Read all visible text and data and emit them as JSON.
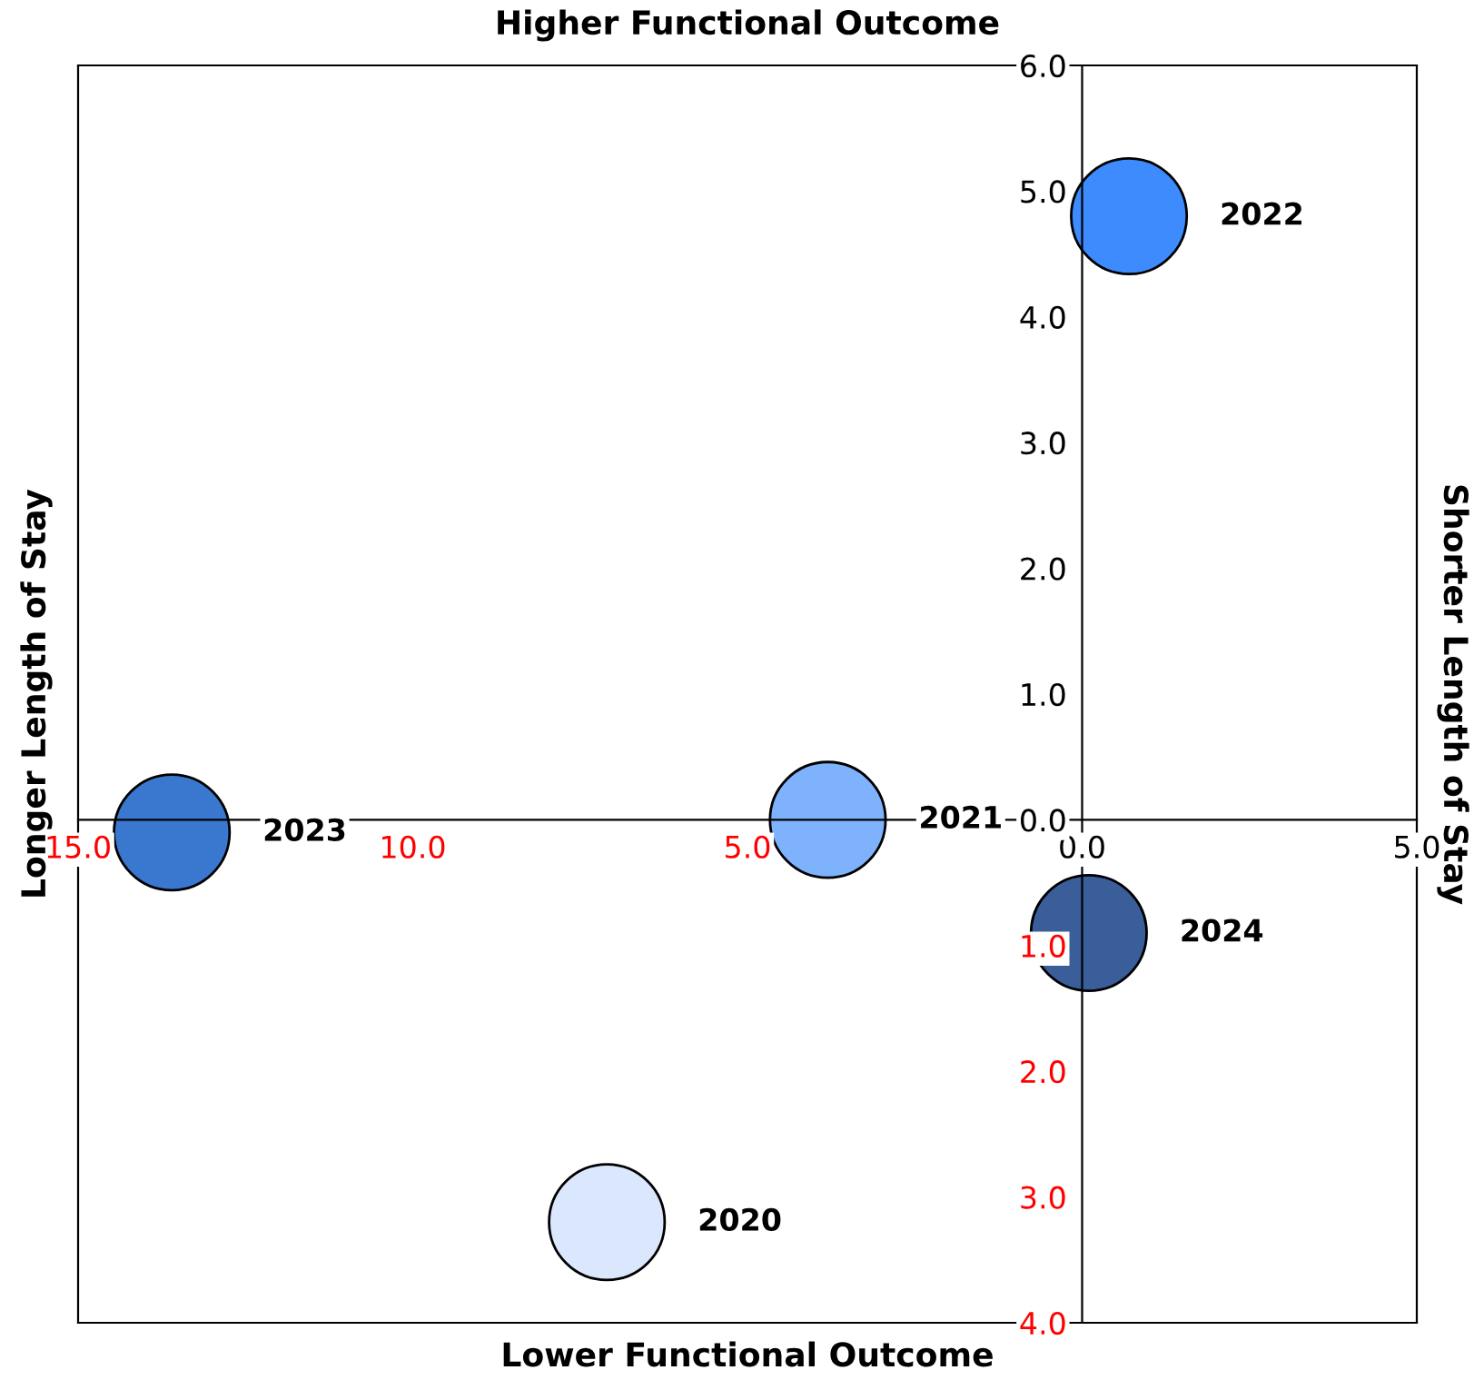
{
  "chart_data": {
    "type": "scatter",
    "xlabel": "Lower Functional Outcome",
    "x2label": "Higher Functional Outcome",
    "ylabel": "Longer Length of Stay",
    "y2label": "Shorter Length of Stay",
    "xlim": [
      -15,
      5
    ],
    "ylim": [
      -4,
      6
    ],
    "marker": "circle",
    "xticks": [
      {
        "value": -15,
        "label": "15.0"
      },
      {
        "value": -10,
        "label": "10.0"
      },
      {
        "value": -5,
        "label": "5.0"
      },
      {
        "value": 0,
        "label": "0.0"
      },
      {
        "value": 5,
        "label": "5.0"
      }
    ],
    "yticks": [
      {
        "value": -4,
        "label": "4.0"
      },
      {
        "value": -3,
        "label": "3.0"
      },
      {
        "value": -2,
        "label": "2.0"
      },
      {
        "value": -1,
        "label": "1.0"
      },
      {
        "value": 0,
        "label": "0.0"
      },
      {
        "value": 1,
        "label": "1.0"
      },
      {
        "value": 2,
        "label": "2.0"
      },
      {
        "value": 3,
        "label": "3.0"
      },
      {
        "value": 4,
        "label": "4.0"
      },
      {
        "value": 5,
        "label": "5.0"
      },
      {
        "value": 6,
        "label": "6.0"
      }
    ],
    "series": [
      {
        "name": "2022",
        "color": "#3d8bfd",
        "x": [
          0.7
        ],
        "values": [
          4.8
        ]
      },
      {
        "name": "2023",
        "color": "#3a78d0",
        "x": [
          -13.6
        ],
        "values": [
          -0.1
        ]
      },
      {
        "name": "2021",
        "color": "#7fb2fc",
        "x": [
          -3.8
        ],
        "values": [
          0.0
        ]
      },
      {
        "name": "2024",
        "color": "#3a5e9a",
        "x": [
          0.1
        ],
        "values": [
          -0.9
        ]
      },
      {
        "name": "2020",
        "color": "#dbe7fc",
        "x": [
          -7.1
        ],
        "values": [
          -3.2
        ]
      }
    ]
  }
}
